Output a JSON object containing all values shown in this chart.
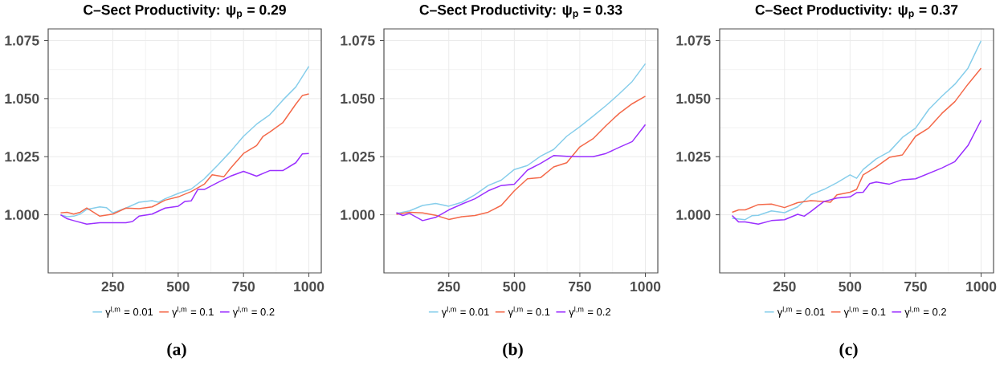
{
  "chart_data": [
    {
      "type": "line",
      "title": "C–Sect Productivity: ψ$_{p}$ = 0.29",
      "xlim": [
        2.5,
        1047.5
      ],
      "ylim": [
        0.975,
        1.08
      ],
      "xticks": [
        250,
        500,
        750,
        1000
      ],
      "yticks": [
        {
          "value": 1.0,
          "label": "1.000"
        },
        {
          "value": 1.025,
          "label": "1.025"
        },
        {
          "value": 1.05,
          "label": "1.050"
        },
        {
          "value": 1.075,
          "label": "1.075"
        }
      ],
      "grid": true,
      "legend": "bottom",
      "line_style": "solid",
      "annotations": [
        "(a)"
      ],
      "series": [
        {
          "name": "γ$^{l,m}$ = 0.01",
          "color": "#87ceeb",
          "x": [
            50,
            75,
            100,
            125,
            150,
            200,
            225,
            250,
            300,
            350,
            400,
            425,
            450,
            500,
            550,
            600,
            650,
            700,
            750,
            800,
            850,
            900,
            950,
            1000
          ],
          "values": [
            1.0,
            0.9992,
            0.9994,
            1.0003,
            1.0023,
            1.0034,
            1.0031,
            1.0008,
            1.0029,
            1.0054,
            1.0061,
            1.0054,
            1.0069,
            1.0092,
            1.0111,
            1.0155,
            1.0212,
            1.0272,
            1.0338,
            1.039,
            1.043,
            1.0493,
            1.055,
            1.0639
          ]
        },
        {
          "name": "γ$^{l,m}$ = 0.1",
          "color": "#f4694a",
          "x": [
            50,
            75,
            100,
            125,
            150,
            200,
            250,
            300,
            350,
            400,
            450,
            500,
            550,
            600,
            630,
            675,
            700,
            750,
            800,
            825,
            850,
            900,
            950,
            975,
            1000
          ],
          "values": [
            1.0008,
            1.0011,
            1.0003,
            1.0011,
            1.0029,
            0.9994,
            1.0003,
            1.0029,
            1.0026,
            1.0034,
            1.0063,
            1.0077,
            1.01,
            1.0132,
            1.0172,
            1.0164,
            1.02,
            1.0264,
            1.0298,
            1.0338,
            1.0356,
            1.0396,
            1.0476,
            1.0513,
            1.052
          ]
        },
        {
          "name": "γ$^{l,m}$ = 0.2",
          "color": "#9b30ff",
          "x": [
            50,
            75,
            100,
            150,
            200,
            250,
            300,
            325,
            350,
            400,
            450,
            500,
            525,
            550,
            575,
            600,
            650,
            700,
            750,
            800,
            850,
            900,
            950,
            975,
            1000
          ],
          "values": [
            1.0,
            0.9983,
            0.9975,
            0.996,
            0.9966,
            0.9966,
            0.9966,
            0.9971,
            0.9994,
            1.0003,
            1.0029,
            1.0037,
            1.0057,
            1.006,
            1.0109,
            1.0109,
            1.0138,
            1.0166,
            1.0187,
            1.0166,
            1.019,
            1.019,
            1.0224,
            1.0262,
            1.0264
          ]
        }
      ]
    },
    {
      "type": "line",
      "title": "C–Sect Productivity: ψ$_{p}$ = 0.33",
      "xlim": [
        2.5,
        1047.5
      ],
      "ylim": [
        0.975,
        1.08
      ],
      "xticks": [
        250,
        500,
        750,
        1000
      ],
      "yticks": [
        {
          "value": 1.0,
          "label": "1.000"
        },
        {
          "value": 1.025,
          "label": "1.025"
        },
        {
          "value": 1.05,
          "label": "1.050"
        },
        {
          "value": 1.075,
          "label": "1.075"
        }
      ],
      "grid": true,
      "legend": "bottom",
      "line_style": "solid",
      "annotations": [
        "(b)"
      ],
      "series": [
        {
          "name": "γ$^{l,m}$ = 0.01",
          "color": "#87ceeb",
          "x": [
            50,
            100,
            150,
            200,
            250,
            300,
            350,
            400,
            450,
            500,
            550,
            600,
            650,
            700,
            750,
            800,
            850,
            900,
            950,
            1000
          ],
          "values": [
            1.0006,
            1.0017,
            1.004,
            1.0049,
            1.0037,
            1.0054,
            1.0086,
            1.0126,
            1.0149,
            1.0195,
            1.0212,
            1.0252,
            1.0281,
            1.0338,
            1.0379,
            1.0424,
            1.047,
            1.052,
            1.0574,
            1.065
          ]
        },
        {
          "name": "γ$^{l,m}$ = 0.1",
          "color": "#f4694a",
          "x": [
            50,
            100,
            150,
            200,
            250,
            300,
            350,
            400,
            450,
            500,
            550,
            600,
            650,
            700,
            750,
            800,
            850,
            900,
            950,
            1000
          ],
          "values": [
            1.0002,
            1.0011,
            1.0008,
            0.9998,
            0.998,
            0.9992,
            0.9997,
            1.0011,
            1.004,
            1.0103,
            1.0155,
            1.016,
            1.0206,
            1.0224,
            1.0292,
            1.0327,
            1.0384,
            1.0436,
            1.0478,
            1.051
          ]
        },
        {
          "name": "γ$^{l,m}$ = 0.2",
          "color": "#9b30ff",
          "x": [
            50,
            75,
            100,
            150,
            200,
            250,
            300,
            350,
            400,
            450,
            500,
            550,
            600,
            650,
            700,
            750,
            800,
            850,
            900,
            950,
            1000
          ],
          "values": [
            1.0009,
            0.9997,
            1.0006,
            0.9975,
            0.9989,
            1.0021,
            1.0046,
            1.0069,
            1.0103,
            1.0126,
            1.0132,
            1.0192,
            1.0221,
            1.0255,
            1.0252,
            1.025,
            1.025,
            1.0264,
            1.029,
            1.0315,
            1.0388
          ]
        }
      ]
    },
    {
      "type": "line",
      "title": "C–Sect Productivity: ψ$_{p}$ = 0.37",
      "xlim": [
        2.5,
        1047.5
      ],
      "ylim": [
        0.975,
        1.08
      ],
      "xticks": [
        250,
        500,
        750,
        1000
      ],
      "yticks": [
        {
          "value": 1.0,
          "label": "1.000"
        },
        {
          "value": 1.025,
          "label": "1.025"
        },
        {
          "value": 1.05,
          "label": "1.050"
        },
        {
          "value": 1.075,
          "label": "1.075"
        }
      ],
      "grid": true,
      "legend": "bottom",
      "line_style": "solid",
      "annotations": [
        "(c)"
      ],
      "series": [
        {
          "name": "γ$^{l,m}$ = 0.01",
          "color": "#87ceeb",
          "x": [
            50,
            100,
            125,
            150,
            200,
            250,
            300,
            350,
            400,
            450,
            500,
            525,
            550,
            600,
            650,
            700,
            750,
            800,
            850,
            900,
            950,
            1000
          ],
          "values": [
            0.9985,
            0.9979,
            0.9996,
            0.9998,
            1.0017,
            1.0009,
            1.0034,
            1.0086,
            1.0109,
            1.0138,
            1.0172,
            1.0157,
            1.0195,
            1.0241,
            1.0272,
            1.0333,
            1.0373,
            1.0453,
            1.051,
            1.0562,
            1.0631,
            1.0749
          ]
        },
        {
          "name": "γ$^{l,m}$ = 0.1",
          "color": "#f4694a",
          "x": [
            50,
            75,
            100,
            150,
            200,
            250,
            300,
            350,
            400,
            425,
            450,
            500,
            525,
            550,
            600,
            650,
            700,
            750,
            800,
            850,
            900,
            950,
            1000
          ],
          "values": [
            1.0011,
            1.0021,
            1.0021,
            1.0044,
            1.0046,
            1.0031,
            1.0052,
            1.0061,
            1.0057,
            1.0054,
            1.0086,
            1.0097,
            1.0109,
            1.0172,
            1.0206,
            1.0247,
            1.0258,
            1.0338,
            1.0373,
            1.0436,
            1.0487,
            1.0562,
            1.0631
          ]
        },
        {
          "name": "γ$^{l,m}$ = 0.2",
          "color": "#9b30ff",
          "x": [
            50,
            75,
            100,
            150,
            200,
            250,
            300,
            325,
            350,
            400,
            450,
            500,
            525,
            550,
            575,
            600,
            650,
            700,
            750,
            800,
            850,
            900,
            950,
            1000
          ],
          "values": [
            0.9997,
            0.9969,
            0.9969,
            0.996,
            0.9975,
            0.9979,
            1.0002,
            0.9994,
            1.0014,
            1.0057,
            1.0072,
            1.0077,
            1.0095,
            1.0097,
            1.0134,
            1.0141,
            1.0132,
            1.0151,
            1.0155,
            1.0178,
            1.0201,
            1.0229,
            1.0298,
            1.0407
          ]
        }
      ]
    }
  ]
}
